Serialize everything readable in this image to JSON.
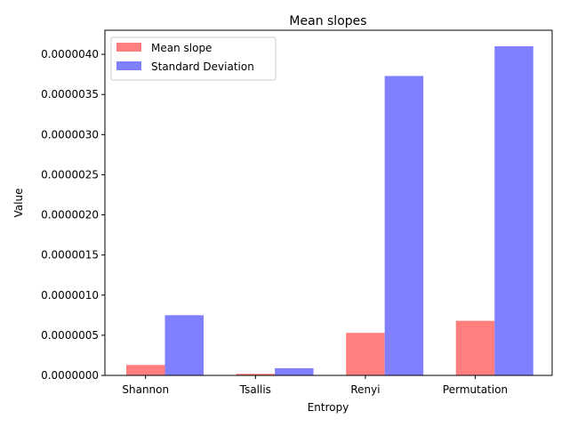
{
  "chart_data": {
    "type": "bar",
    "title": "Mean slopes",
    "xlabel": "Entropy",
    "ylabel": "Value",
    "categories": [
      "Shannon",
      "Tsallis",
      "Renyi",
      "Permutation"
    ],
    "series": [
      {
        "name": "Mean slope",
        "color": "#ff7f7f",
        "values": [
          1.3e-07,
          2e-08,
          5.3e-07,
          6.8e-07
        ]
      },
      {
        "name": "Standard Deviation",
        "color": "#7f7fff",
        "values": [
          7.5e-07,
          9e-08,
          3.73e-06,
          4.1e-06
        ]
      }
    ],
    "ylim": [
      0,
      4.3e-06
    ],
    "yticks": [
      {
        "value": 0,
        "label": "0.0000000"
      },
      {
        "value": 5e-07,
        "label": "0.0000005"
      },
      {
        "value": 1e-06,
        "label": "0.0000010"
      },
      {
        "value": 1.5e-06,
        "label": "0.0000015"
      },
      {
        "value": 2e-06,
        "label": "0.0000020"
      },
      {
        "value": 2.5e-06,
        "label": "0.0000025"
      },
      {
        "value": 3e-06,
        "label": "0.0000030"
      },
      {
        "value": 3.5e-06,
        "label": "0.0000035"
      },
      {
        "value": 4e-06,
        "label": "0.0000040"
      }
    ],
    "legend": "top-left",
    "grid": false
  }
}
